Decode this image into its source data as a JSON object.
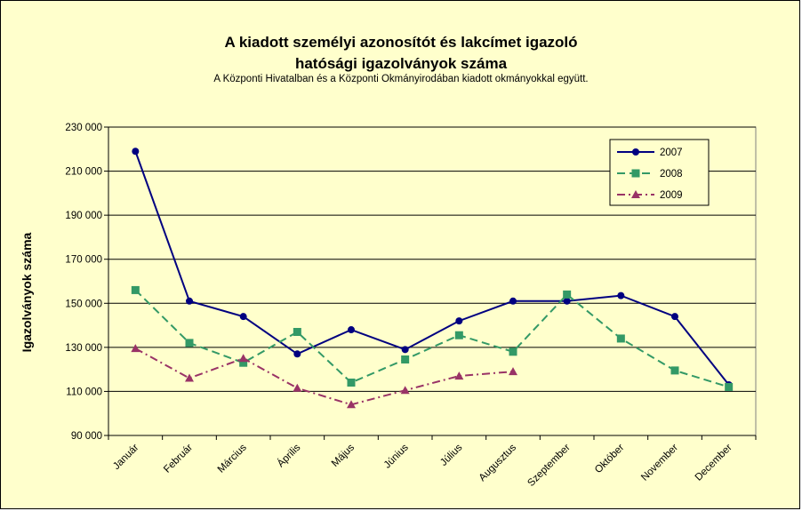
{
  "chart_data": {
    "type": "line",
    "title_line1": "A kiadott személyi azonosítót és lakcímet igazoló",
    "title_line2": "hatósági igazolványok száma",
    "subtitle": "A Központi Hivatalban és a Központi Okmányirodában kiadott okmányokkal együtt.",
    "ylabel": "Igazolványok száma",
    "xlabel": "",
    "ylim": [
      90000,
      230000
    ],
    "yticks": [
      90000,
      110000,
      130000,
      150000,
      170000,
      190000,
      210000,
      230000
    ],
    "ytick_labels": [
      "90 000",
      "110 000",
      "130 000",
      "150 000",
      "170 000",
      "190 000",
      "210 000",
      "230 000"
    ],
    "categories": [
      "Január",
      "Február",
      "Március",
      "Április",
      "Május",
      "Június",
      "Július",
      "Augusztus",
      "Szeptember",
      "Október",
      "November",
      "December"
    ],
    "grid": "horizontal",
    "legend_position": "top-right",
    "series": [
      {
        "name": "2007",
        "color": "#000080",
        "marker": "circle",
        "dash": "solid",
        "values": [
          219000,
          151000,
          144000,
          127000,
          138000,
          129000,
          142000,
          151000,
          151000,
          153500,
          144000,
          113000
        ]
      },
      {
        "name": "2008",
        "color": "#339966",
        "marker": "square",
        "dash": "dash",
        "values": [
          156000,
          132000,
          123000,
          137000,
          114000,
          124500,
          135500,
          128000,
          154000,
          134000,
          119500,
          112000
        ]
      },
      {
        "name": "2009",
        "color": "#993366",
        "marker": "triangle",
        "dash": "dashdot",
        "values": [
          129500,
          116000,
          125000,
          111500,
          104000,
          110500,
          117000,
          119000,
          null,
          null,
          null,
          null
        ]
      }
    ]
  },
  "colors": {
    "background": "#ffffcc",
    "plot_background": "#ffffcc"
  }
}
